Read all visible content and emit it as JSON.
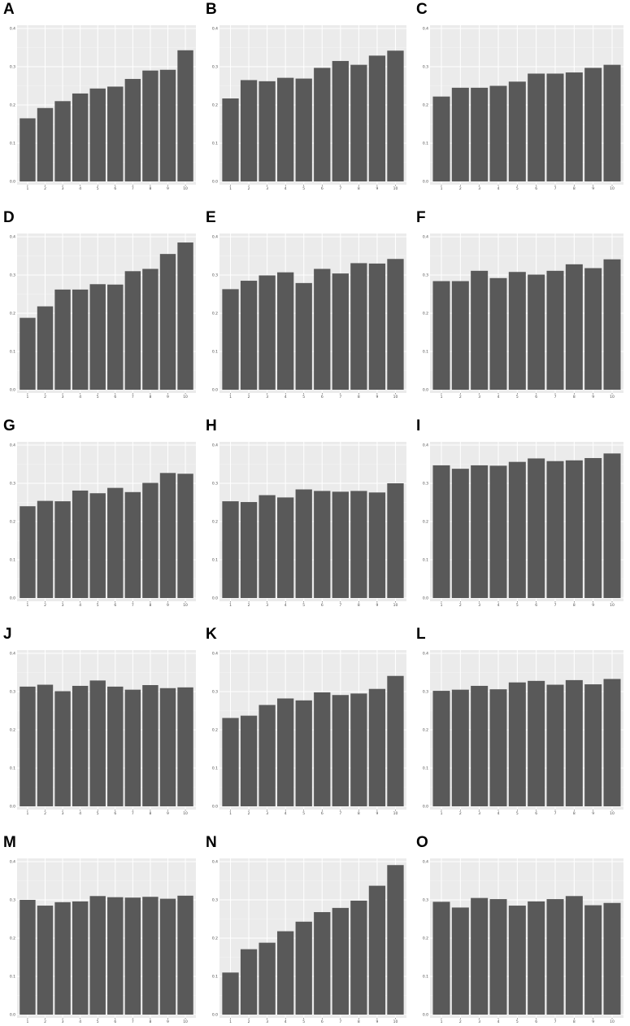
{
  "chart_data": [
    {
      "panel": "A",
      "type": "bar",
      "categories": [
        "1",
        "2",
        "3",
        "4",
        "5",
        "6",
        "7",
        "8",
        "9",
        "10"
      ],
      "values": [
        0.165,
        0.192,
        0.21,
        0.23,
        0.243,
        0.248,
        0.268,
        0.29,
        0.292,
        0.343
      ],
      "ylim": [
        0,
        0.4
      ],
      "yticks": [
        "0.0",
        "0.1",
        "0.2",
        "0.3",
        "0.4"
      ],
      "grid": true
    },
    {
      "panel": "B",
      "type": "bar",
      "categories": [
        "1",
        "2",
        "3",
        "4",
        "5",
        "6",
        "7",
        "8",
        "9",
        "10"
      ],
      "values": [
        0.217,
        0.265,
        0.262,
        0.271,
        0.269,
        0.297,
        0.315,
        0.305,
        0.329,
        0.342
      ],
      "ylim": [
        0,
        0.4
      ],
      "yticks": [
        "0.0",
        "0.1",
        "0.2",
        "0.3",
        "0.4"
      ],
      "grid": true
    },
    {
      "panel": "C",
      "type": "bar",
      "categories": [
        "1",
        "2",
        "3",
        "4",
        "5",
        "6",
        "7",
        "8",
        "9",
        "10"
      ],
      "values": [
        0.222,
        0.245,
        0.245,
        0.25,
        0.261,
        0.282,
        0.282,
        0.285,
        0.297,
        0.305
      ],
      "ylim": [
        0,
        0.4
      ],
      "yticks": [
        "0.0",
        "0.1",
        "0.2",
        "0.3",
        "0.4"
      ],
      "grid": true
    },
    {
      "panel": "D",
      "type": "bar",
      "categories": [
        "1",
        "2",
        "3",
        "4",
        "5",
        "6",
        "7",
        "8",
        "9",
        "10"
      ],
      "values": [
        0.188,
        0.218,
        0.262,
        0.262,
        0.276,
        0.275,
        0.31,
        0.316,
        0.355,
        0.385
      ],
      "ylim": [
        0,
        0.4
      ],
      "yticks": [
        "0.0",
        "0.1",
        "0.2",
        "0.3",
        "0.4"
      ],
      "grid": true
    },
    {
      "panel": "E",
      "type": "bar",
      "categories": [
        "1",
        "2",
        "3",
        "4",
        "5",
        "6",
        "7",
        "8",
        "9",
        "10"
      ],
      "values": [
        0.263,
        0.285,
        0.299,
        0.307,
        0.279,
        0.316,
        0.304,
        0.331,
        0.33,
        0.342
      ],
      "ylim": [
        0,
        0.4
      ],
      "yticks": [
        "0.0",
        "0.1",
        "0.2",
        "0.3",
        "0.4"
      ],
      "grid": true
    },
    {
      "panel": "F",
      "type": "bar",
      "categories": [
        "1",
        "2",
        "3",
        "4",
        "5",
        "6",
        "7",
        "8",
        "9",
        "10"
      ],
      "values": [
        0.284,
        0.284,
        0.311,
        0.292,
        0.308,
        0.301,
        0.311,
        0.328,
        0.318,
        0.341
      ],
      "ylim": [
        0,
        0.4
      ],
      "yticks": [
        "0.0",
        "0.1",
        "0.2",
        "0.3",
        "0.4"
      ],
      "grid": true
    },
    {
      "panel": "G",
      "type": "bar",
      "categories": [
        "1",
        "2",
        "3",
        "4",
        "5",
        "6",
        "7",
        "8",
        "9",
        "10"
      ],
      "values": [
        0.24,
        0.254,
        0.253,
        0.281,
        0.274,
        0.288,
        0.277,
        0.301,
        0.327,
        0.325
      ],
      "ylim": [
        0,
        0.4
      ],
      "yticks": [
        "0.0",
        "0.1",
        "0.2",
        "0.3",
        "0.4"
      ],
      "grid": true
    },
    {
      "panel": "H",
      "type": "bar",
      "categories": [
        "1",
        "2",
        "3",
        "4",
        "5",
        "6",
        "7",
        "8",
        "9",
        "10"
      ],
      "values": [
        0.253,
        0.251,
        0.269,
        0.263,
        0.284,
        0.28,
        0.278,
        0.28,
        0.276,
        0.3
      ],
      "ylim": [
        0,
        0.4
      ],
      "yticks": [
        "0.0",
        "0.1",
        "0.2",
        "0.3",
        "0.4"
      ],
      "grid": true
    },
    {
      "panel": "I",
      "type": "bar",
      "categories": [
        "1",
        "2",
        "3",
        "4",
        "5",
        "6",
        "7",
        "8",
        "9",
        "10"
      ],
      "values": [
        0.347,
        0.338,
        0.347,
        0.346,
        0.356,
        0.365,
        0.358,
        0.36,
        0.366,
        0.378
      ],
      "ylim": [
        0,
        0.4
      ],
      "yticks": [
        "0.0",
        "0.1",
        "0.2",
        "0.3",
        "0.4"
      ],
      "grid": true
    },
    {
      "panel": "J",
      "type": "bar",
      "categories": [
        "1",
        "2",
        "3",
        "4",
        "5",
        "6",
        "7",
        "8",
        "9",
        "10"
      ],
      "values": [
        0.313,
        0.318,
        0.301,
        0.315,
        0.329,
        0.313,
        0.305,
        0.317,
        0.309,
        0.311
      ],
      "ylim": [
        0,
        0.4
      ],
      "yticks": [
        "0.0",
        "0.1",
        "0.2",
        "0.3",
        "0.4"
      ],
      "grid": true
    },
    {
      "panel": "K",
      "type": "bar",
      "categories": [
        "1",
        "2",
        "3",
        "4",
        "5",
        "6",
        "7",
        "8",
        "9",
        "10"
      ],
      "values": [
        0.231,
        0.237,
        0.265,
        0.282,
        0.277,
        0.298,
        0.291,
        0.295,
        0.307,
        0.341
      ],
      "ylim": [
        0,
        0.4
      ],
      "yticks": [
        "0.0",
        "0.1",
        "0.2",
        "0.3",
        "0.4"
      ],
      "grid": true
    },
    {
      "panel": "L",
      "type": "bar",
      "categories": [
        "1",
        "2",
        "3",
        "4",
        "5",
        "6",
        "7",
        "8",
        "9",
        "10"
      ],
      "values": [
        0.302,
        0.305,
        0.315,
        0.306,
        0.324,
        0.328,
        0.318,
        0.33,
        0.319,
        0.333
      ],
      "ylim": [
        0,
        0.4
      ],
      "yticks": [
        "0.0",
        "0.1",
        "0.2",
        "0.3",
        "0.4"
      ],
      "grid": true
    },
    {
      "panel": "M",
      "type": "bar",
      "categories": [
        "1",
        "2",
        "3",
        "4",
        "5",
        "6",
        "7",
        "8",
        "9",
        "10"
      ],
      "values": [
        0.3,
        0.285,
        0.294,
        0.296,
        0.31,
        0.307,
        0.306,
        0.308,
        0.303,
        0.311
      ],
      "ylim": [
        0,
        0.4
      ],
      "yticks": [
        "0.0",
        "0.1",
        "0.2",
        "0.3",
        "0.4"
      ],
      "grid": true
    },
    {
      "panel": "N",
      "type": "bar",
      "categories": [
        "1",
        "2",
        "3",
        "4",
        "5",
        "6",
        "7",
        "8",
        "9",
        "10"
      ],
      "values": [
        0.11,
        0.171,
        0.188,
        0.218,
        0.243,
        0.268,
        0.279,
        0.298,
        0.337,
        0.391
      ],
      "ylim": [
        0,
        0.4
      ],
      "yticks": [
        "0.0",
        "0.1",
        "0.2",
        "0.3",
        "0.4"
      ],
      "grid": true
    },
    {
      "panel": "O",
      "type": "bar",
      "categories": [
        "1",
        "2",
        "3",
        "4",
        "5",
        "6",
        "7",
        "8",
        "9",
        "10"
      ],
      "values": [
        0.295,
        0.28,
        0.305,
        0.302,
        0.285,
        0.296,
        0.302,
        0.31,
        0.286,
        0.292
      ],
      "ylim": [
        0,
        0.4
      ],
      "yticks": [
        "0.0",
        "0.1",
        "0.2",
        "0.3",
        "0.4"
      ],
      "grid": true
    }
  ],
  "style": {
    "bar_color": "#595959",
    "panel_background": "#ebebeb",
    "grid_major_color": "#ffffff",
    "grid_minor_color": "#f4f4f4",
    "label_color": "#4d4d4d"
  }
}
